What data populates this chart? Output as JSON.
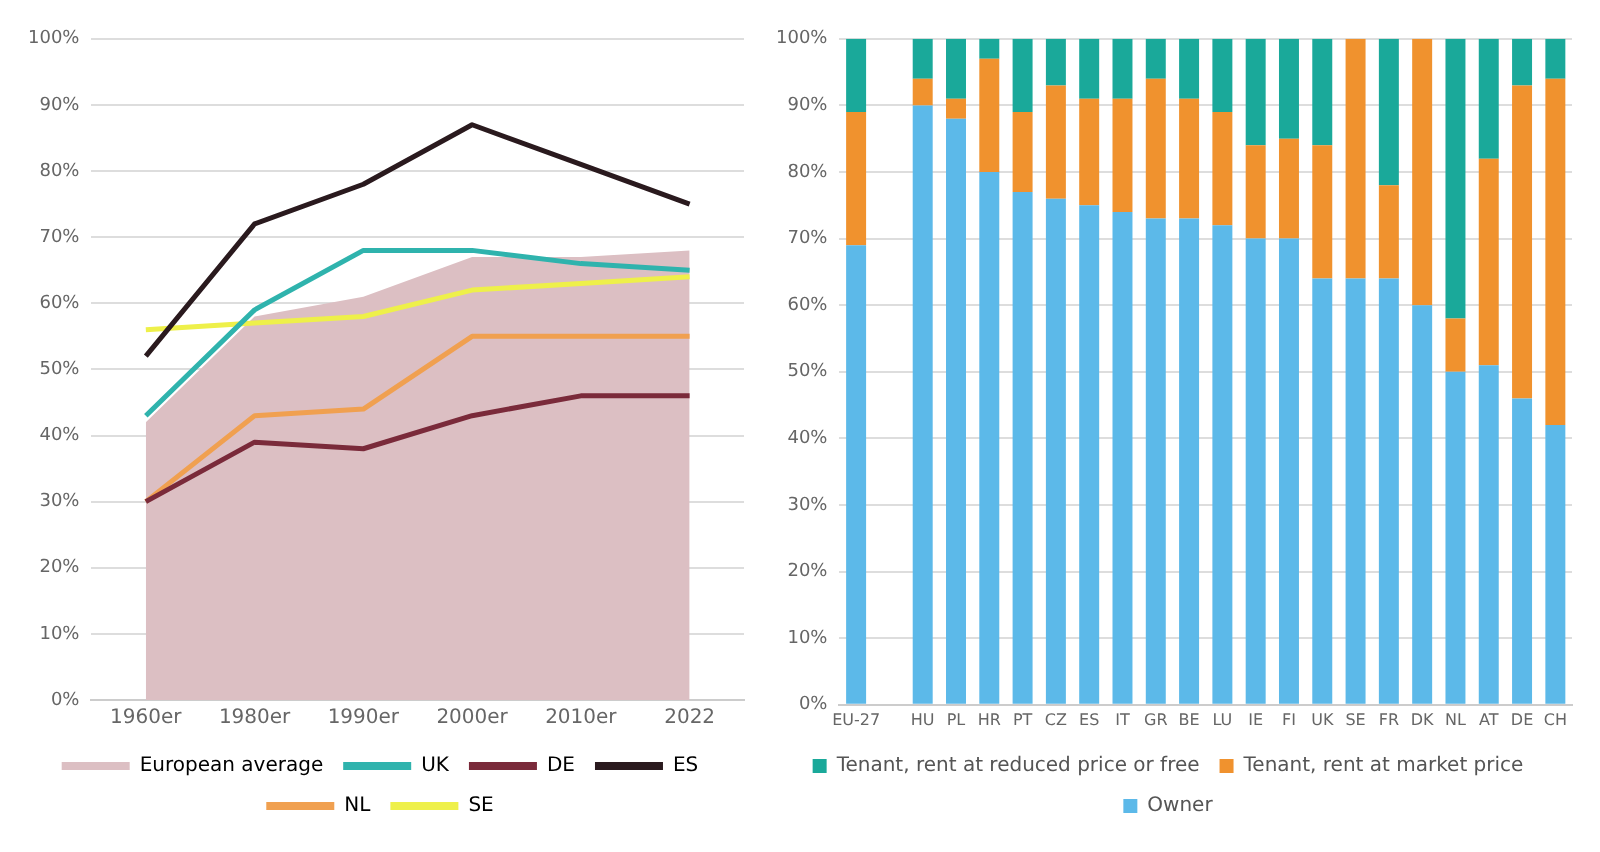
{
  "chart_data": [
    {
      "type": "line",
      "categories": [
        "1960er",
        "1980er",
        "1990er",
        "2000er",
        "2010er",
        "2022"
      ],
      "ylim": [
        0,
        100
      ],
      "yticks": [
        {
          "value": 0,
          "label": "0%"
        },
        {
          "value": 10,
          "label": "10%"
        },
        {
          "value": 20,
          "label": "20%"
        },
        {
          "value": 30,
          "label": "30%"
        },
        {
          "value": 40,
          "label": "40%"
        },
        {
          "value": 50,
          "label": "50%"
        },
        {
          "value": 60,
          "label": "60%"
        },
        {
          "value": 70,
          "label": "70%"
        },
        {
          "value": 80,
          "label": "80%"
        },
        {
          "value": 90,
          "label": "90%"
        },
        {
          "value": 100,
          "label": "100%"
        }
      ],
      "grid": "y",
      "legend": "bottom",
      "marker": "none",
      "series": [
        {
          "name": "European average",
          "type": "area",
          "color": "#dcbfc3",
          "values": [
            42,
            58,
            61,
            67,
            67,
            68
          ]
        },
        {
          "name": "UK",
          "color": "#2fb3ad",
          "values": [
            43,
            59,
            68,
            68,
            66,
            65
          ]
        },
        {
          "name": "DE",
          "color": "#7a2a3a",
          "values": [
            30,
            39,
            38,
            43,
            46,
            46
          ]
        },
        {
          "name": "ES",
          "color": "#2a1a1e",
          "values": [
            52,
            72,
            78,
            87,
            81,
            75
          ]
        },
        {
          "name": "NL",
          "color": "#f0a050",
          "values": [
            30,
            43,
            44,
            55,
            55,
            55
          ]
        },
        {
          "name": "SE",
          "color": "#eef04a",
          "values": [
            56,
            57,
            58,
            62,
            63,
            64
          ]
        }
      ]
    },
    {
      "type": "bar",
      "stacked": true,
      "categories": [
        "EU-27",
        null,
        "HU",
        "PL",
        "HR",
        "PT",
        "CZ",
        "ES",
        "IT",
        "GR",
        "BE",
        "LU",
        "IE",
        "FI",
        "UK",
        "SE",
        "FR",
        "DK",
        "NL",
        "AT",
        "DE",
        "CH"
      ],
      "ylim": [
        0,
        100
      ],
      "yticks": [
        {
          "value": 0,
          "label": "0%"
        },
        {
          "value": 10,
          "label": "10%"
        },
        {
          "value": 20,
          "label": "20%"
        },
        {
          "value": 30,
          "label": "30%"
        },
        {
          "value": 40,
          "label": "40%"
        },
        {
          "value": 50,
          "label": "50%"
        },
        {
          "value": 60,
          "label": "60%"
        },
        {
          "value": 70,
          "label": "70%"
        },
        {
          "value": 80,
          "label": "80%"
        },
        {
          "value": 90,
          "label": "90%"
        },
        {
          "value": 100,
          "label": "100%"
        }
      ],
      "grid": "y",
      "legend": "bottom",
      "series": [
        {
          "name": "Owner",
          "color": "#5cb9e9",
          "values": [
            69,
            null,
            90,
            88,
            80,
            77,
            76,
            75,
            74,
            73,
            73,
            72,
            70,
            70,
            64,
            64,
            64,
            60,
            50,
            51,
            46,
            42
          ]
        },
        {
          "name": "Tenant, rent at market price",
          "color": "#f0922e",
          "values": [
            20,
            null,
            4,
            3,
            17,
            12,
            17,
            16,
            17,
            21,
            18,
            17,
            14,
            15,
            20,
            36,
            14,
            40,
            8,
            31,
            47,
            52
          ]
        },
        {
          "name": "Tenant, rent at reduced price or free",
          "color": "#1aa99a",
          "values": [
            11,
            null,
            6,
            9,
            3,
            11,
            7,
            9,
            9,
            6,
            9,
            11,
            16,
            15,
            16,
            0,
            22,
            0,
            42,
            18,
            7,
            6
          ]
        }
      ]
    }
  ]
}
